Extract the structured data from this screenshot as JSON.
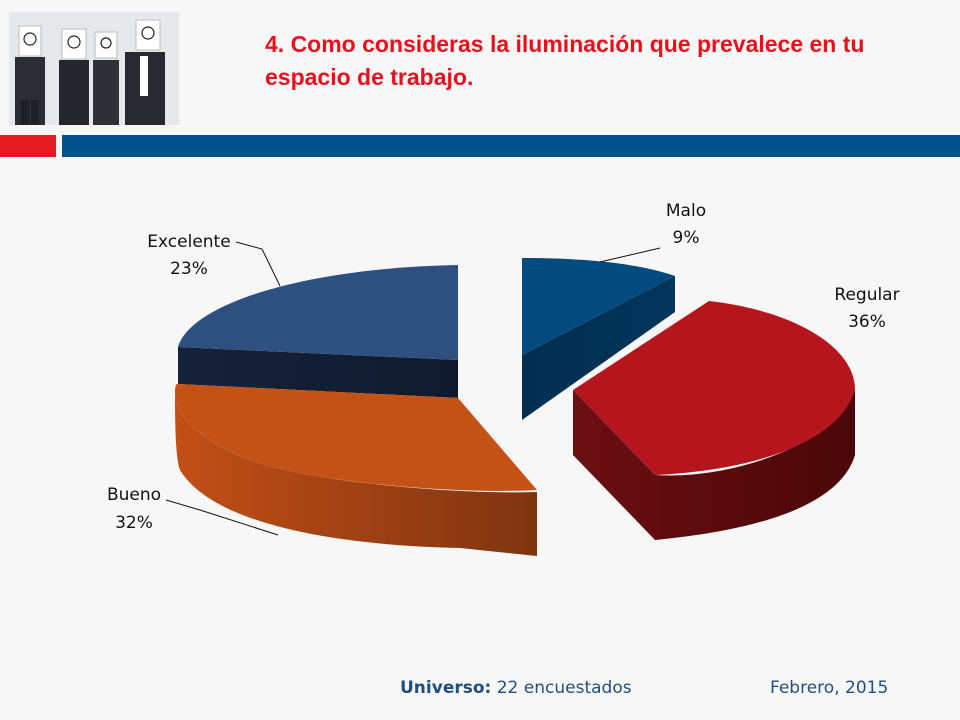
{
  "title": "4. Como consideras la iluminación que prevalece en tu espacio de trabajo.",
  "colors": {
    "title": "#e8101c",
    "accent_red": "#e31b23",
    "accent_blue": "#05508f",
    "footer_text": "#1f4f82"
  },
  "photo": {
    "icon": "four-people-holding-smiley-signs"
  },
  "footer": {
    "universe_label": "Universo:",
    "universe_value": "22 encuestados",
    "date": "Febrero, 2015"
  },
  "chart_data": {
    "type": "pie",
    "style": "3d-exploded",
    "slices": [
      {
        "label": "Malo",
        "value": 9,
        "value_label": "9%",
        "color": "#034a7e"
      },
      {
        "label": "Regular",
        "value": 36,
        "value_label": "36%",
        "color": "#b5161e"
      },
      {
        "label": "Bueno",
        "value": 32,
        "value_label": "32%",
        "color": "#c45216"
      },
      {
        "label": "Excelente",
        "value": 23,
        "value_label": "23%",
        "color": "#2d5081"
      }
    ]
  }
}
